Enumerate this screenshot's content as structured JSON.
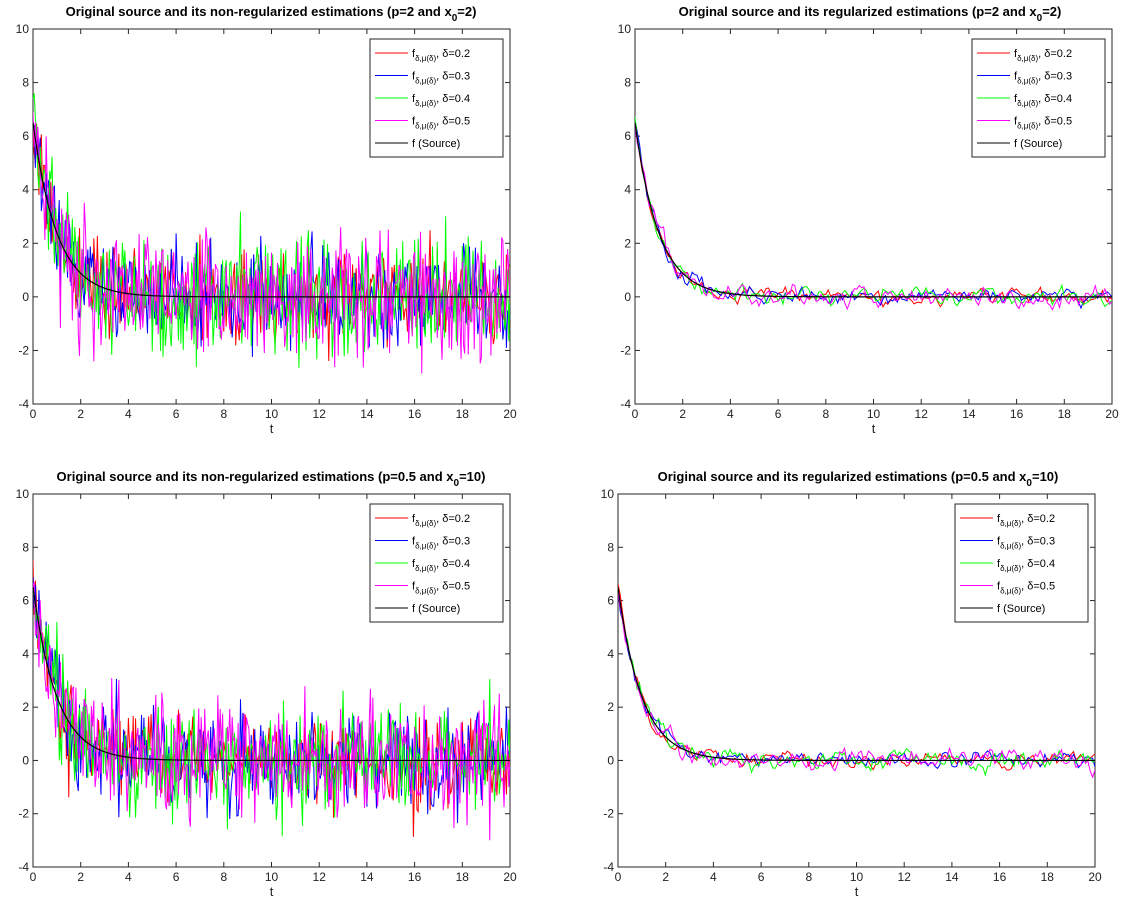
{
  "colors": {
    "red": "#ff0000",
    "blue": "#0000ff",
    "green": "#00ff00",
    "magenta": "#ff00ff",
    "source": "#000000"
  },
  "legend_symbols": {
    "f": "f",
    "subscript": "δ,μ(δ)",
    "sep": ", "
  },
  "chart_data": [
    {
      "type": "line",
      "title": "Original source and its non-regularized estimations (p=2 and x",
      "title_sub": "0",
      "title_tail": "=2)",
      "xlabel": "t",
      "xlim": [
        0,
        20
      ],
      "ylim": [
        -4,
        10
      ],
      "xticks": [
        "0",
        "2",
        "4",
        "6",
        "8",
        "10",
        "12",
        "14",
        "16",
        "18",
        "20"
      ],
      "yticks": [
        "-4",
        "-2",
        "0",
        "2",
        "4",
        "6",
        "8",
        "10"
      ],
      "legend_position": "top-right",
      "noise": 1.45,
      "series": [
        {
          "name": "δ=0.2",
          "color": "red",
          "x_step": 0.05
        },
        {
          "name": "δ=0.3",
          "color": "blue",
          "x_step": 0.05
        },
        {
          "name": "δ=0.4",
          "color": "green",
          "x_step": 0.05
        },
        {
          "name": "δ=0.5",
          "color": "magenta",
          "x_step": 0.05
        },
        {
          "name": "f (Source)",
          "color": "source",
          "x": [
            0,
            0.5,
            1,
            1.5,
            2,
            2.5,
            3,
            3.5,
            4,
            5,
            6,
            8,
            10,
            12,
            14,
            16,
            18,
            20
          ],
          "y": [
            6.5,
            3.94,
            2.39,
            1.45,
            0.88,
            0.53,
            0.32,
            0.2,
            0.12,
            0.04,
            0.02,
            0.0,
            0,
            0,
            0,
            0,
            0,
            0
          ]
        }
      ]
    },
    {
      "type": "line",
      "title": "Original source and its regularized estimations (p=2 and x",
      "title_sub": "0",
      "title_tail": "=2)",
      "xlabel": "t",
      "xlim": [
        0,
        20
      ],
      "ylim": [
        -4,
        10
      ],
      "xticks": [
        "0",
        "2",
        "4",
        "6",
        "8",
        "10",
        "12",
        "14",
        "16",
        "18",
        "20"
      ],
      "yticks": [
        "-4",
        "-2",
        "0",
        "2",
        "4",
        "6",
        "8",
        "10"
      ],
      "legend_position": "top-right",
      "noise": 0.28,
      "series": [
        {
          "name": "δ=0.2",
          "color": "red",
          "x_step": 0.1
        },
        {
          "name": "δ=0.3",
          "color": "blue",
          "x_step": 0.1
        },
        {
          "name": "δ=0.4",
          "color": "green",
          "x_step": 0.1
        },
        {
          "name": "δ=0.5",
          "color": "magenta",
          "x_step": 0.1
        },
        {
          "name": "f (Source)",
          "color": "source",
          "x": [
            0,
            0.5,
            1,
            1.5,
            2,
            2.5,
            3,
            3.5,
            4,
            5,
            6,
            8,
            10,
            12,
            14,
            16,
            18,
            20
          ],
          "y": [
            6.5,
            3.94,
            2.39,
            1.45,
            0.88,
            0.53,
            0.32,
            0.2,
            0.12,
            0.04,
            0.02,
            0.0,
            0,
            0,
            0,
            0,
            0,
            0
          ]
        }
      ]
    },
    {
      "type": "line",
      "title": "Original source and its non-regularized estimations (p=0.5 and x",
      "title_sub": "0",
      "title_tail": "=10)",
      "xlabel": "t",
      "xlim": [
        0,
        20
      ],
      "ylim": [
        -4,
        10
      ],
      "xticks": [
        "0",
        "2",
        "4",
        "6",
        "8",
        "10",
        "12",
        "14",
        "16",
        "18",
        "20"
      ],
      "yticks": [
        "-4",
        "-2",
        "0",
        "2",
        "4",
        "6",
        "8",
        "10"
      ],
      "legend_position": "top-right",
      "noise": 1.45,
      "series": [
        {
          "name": "δ=0.2",
          "color": "red",
          "x_step": 0.05
        },
        {
          "name": "δ=0.3",
          "color": "blue",
          "x_step": 0.05
        },
        {
          "name": "δ=0.4",
          "color": "green",
          "x_step": 0.05
        },
        {
          "name": "δ=0.5",
          "color": "magenta",
          "x_step": 0.05
        },
        {
          "name": "f (Source)",
          "color": "source",
          "x": [
            0,
            0.5,
            1,
            1.5,
            2,
            2.5,
            3,
            3.5,
            4,
            5,
            6,
            8,
            10,
            12,
            14,
            16,
            18,
            20
          ],
          "y": [
            6.5,
            3.94,
            2.39,
            1.45,
            0.88,
            0.53,
            0.32,
            0.2,
            0.12,
            0.04,
            0.02,
            0.0,
            0,
            0,
            0,
            0,
            0,
            0
          ]
        }
      ]
    },
    {
      "type": "line",
      "title": "Original source and its regularized estimations (p=0.5 and x",
      "title_sub": "0",
      "title_tail": "=10)",
      "xlabel": "t",
      "xlim": [
        0,
        20
      ],
      "ylim": [
        -4,
        10
      ],
      "xticks": [
        "0",
        "2",
        "4",
        "6",
        "8",
        "10",
        "12",
        "14",
        "16",
        "18",
        "20"
      ],
      "yticks": [
        "-4",
        "-2",
        "0",
        "2",
        "4",
        "6",
        "8",
        "10"
      ],
      "legend_position": "top-right",
      "noise": 0.3,
      "series": [
        {
          "name": "δ=0.2",
          "color": "red",
          "x_step": 0.1
        },
        {
          "name": "δ=0.3",
          "color": "blue",
          "x_step": 0.1
        },
        {
          "name": "δ=0.4",
          "color": "green",
          "x_step": 0.1
        },
        {
          "name": "δ=0.5",
          "color": "magenta",
          "x_step": 0.1
        },
        {
          "name": "f (Source)",
          "color": "source",
          "x": [
            0,
            0.5,
            1,
            1.5,
            2,
            2.5,
            3,
            3.5,
            4,
            5,
            6,
            8,
            10,
            12,
            14,
            16,
            18,
            20
          ],
          "y": [
            6.5,
            3.94,
            2.39,
            1.45,
            0.88,
            0.53,
            0.32,
            0.2,
            0.12,
            0.04,
            0.02,
            0.0,
            0,
            0,
            0,
            0,
            0,
            0
          ]
        }
      ]
    }
  ]
}
